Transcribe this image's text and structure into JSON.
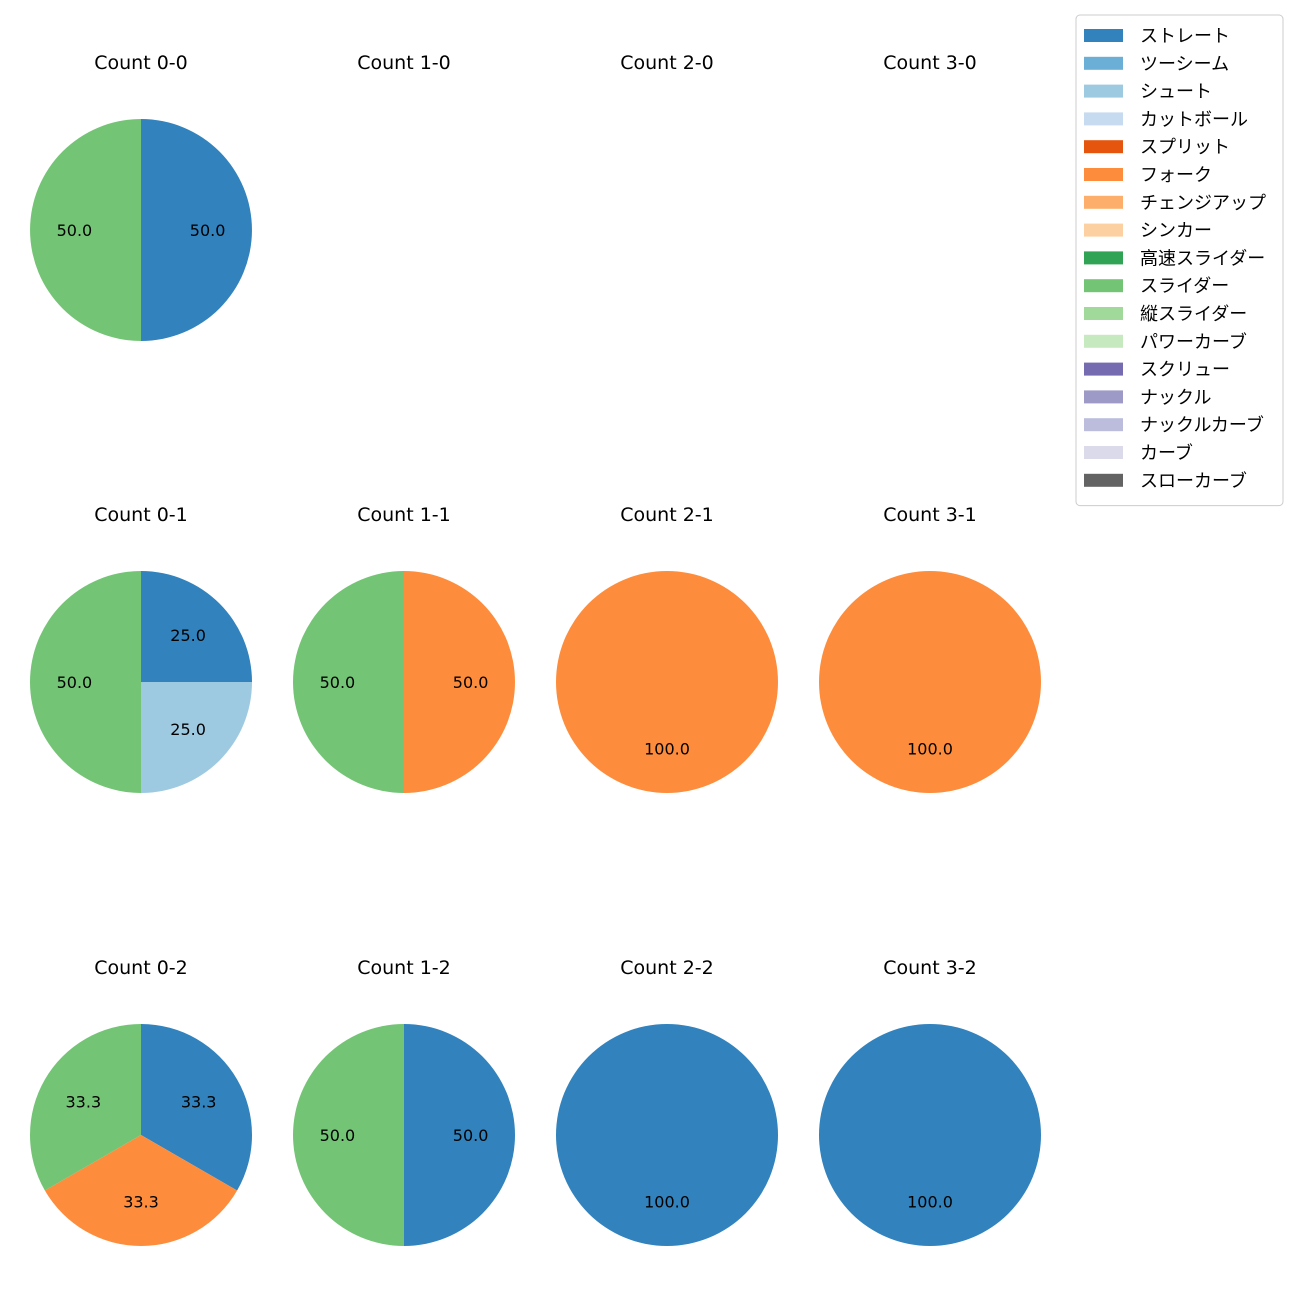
{
  "chart_data": {
    "type": "pie",
    "categories": [
      "ストレート",
      "ツーシーム",
      "シュート",
      "カットボール",
      "スプリット",
      "フォーク",
      "チェンジアップ",
      "シンカー",
      "高速スライダー",
      "スライダー",
      "縦スライダー",
      "パワーカーブ",
      "スクリュー",
      "ナックル",
      "ナックルカーブ",
      "カーブ",
      "スローカーブ"
    ],
    "colors": [
      "#3182bd",
      "#6baed6",
      "#9ecae1",
      "#c6dbef",
      "#e6550d",
      "#fd8d3c",
      "#fdae6b",
      "#fdd0a2",
      "#31a354",
      "#74c476",
      "#a1d99b",
      "#c7e9c0",
      "#756bb1",
      "#9e9ac8",
      "#bcbddc",
      "#dadaeb",
      "#636363"
    ],
    "legend_position": "top-right",
    "panels": [
      {
        "title": "Count 0-0",
        "slices": [
          {
            "category": "ストレート",
            "value": 50.0,
            "label": "50.0"
          },
          {
            "category": "スライダー",
            "value": 50.0,
            "label": "50.0"
          }
        ]
      },
      {
        "title": "Count 1-0",
        "slices": []
      },
      {
        "title": "Count 2-0",
        "slices": []
      },
      {
        "title": "Count 3-0",
        "slices": []
      },
      {
        "title": "Count 0-1",
        "slices": [
          {
            "category": "ストレート",
            "value": 25.0,
            "label": "25.0"
          },
          {
            "category": "シュート",
            "value": 25.0,
            "label": "25.0"
          },
          {
            "category": "スライダー",
            "value": 50.0,
            "label": "50.0"
          }
        ]
      },
      {
        "title": "Count 1-1",
        "slices": [
          {
            "category": "フォーク",
            "value": 50.0,
            "label": "50.0"
          },
          {
            "category": "スライダー",
            "value": 50.0,
            "label": "50.0"
          }
        ]
      },
      {
        "title": "Count 2-1",
        "slices": [
          {
            "category": "フォーク",
            "value": 100.0,
            "label": "100.0"
          }
        ]
      },
      {
        "title": "Count 3-1",
        "slices": [
          {
            "category": "フォーク",
            "value": 100.0,
            "label": "100.0"
          }
        ]
      },
      {
        "title": "Count 0-2",
        "slices": [
          {
            "category": "ストレート",
            "value": 33.3,
            "label": "33.3"
          },
          {
            "category": "フォーク",
            "value": 33.3,
            "label": "33.3"
          },
          {
            "category": "スライダー",
            "value": 33.3,
            "label": "33.3"
          }
        ]
      },
      {
        "title": "Count 1-2",
        "slices": [
          {
            "category": "ストレート",
            "value": 50.0,
            "label": "50.0"
          },
          {
            "category": "スライダー",
            "value": 50.0,
            "label": "50.0"
          }
        ]
      },
      {
        "title": "Count 2-2",
        "slices": [
          {
            "category": "ストレート",
            "value": 100.0,
            "label": "100.0"
          }
        ]
      },
      {
        "title": "Count 3-2",
        "slices": [
          {
            "category": "ストレート",
            "value": 100.0,
            "label": "100.0"
          }
        ]
      }
    ]
  }
}
